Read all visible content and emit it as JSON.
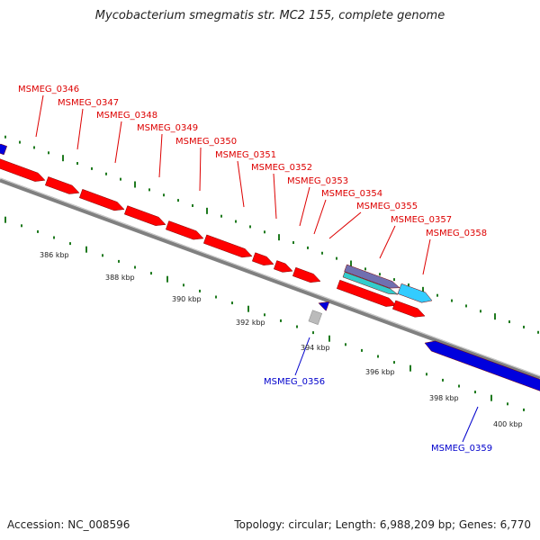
{
  "title": "Mycobacterium smegmatis str. MC2 155, complete genome",
  "footer": {
    "accession": "Accession: NC_008596",
    "summary": "Topology: circular; Length: 6,988,209 bp; Genes: 6,770"
  },
  "colors": {
    "forward_gene": "#ff0000",
    "reverse_gene": "#0000dd",
    "rna_gene": "#33ccff",
    "gc_content": "#1f7a1f",
    "axis": "#888888"
  },
  "scale_labels": [
    "386 kbp",
    "388 kbp",
    "390 kbp",
    "392 kbp",
    "394 kbp",
    "396 kbp",
    "398 kbp",
    "400 kbp"
  ],
  "genes_forward": [
    "MSMEG_0346",
    "MSMEG_0347",
    "MSMEG_0348",
    "MSMEG_0349",
    "MSMEG_0350",
    "MSMEG_0351",
    "MSMEG_0352",
    "MSMEG_0353",
    "MSMEG_0354",
    "MSMEG_0355",
    "MSMEG_0357",
    "MSMEG_0358"
  ],
  "genes_reverse": [
    "MSMEG_0356",
    "MSMEG_0359"
  ]
}
